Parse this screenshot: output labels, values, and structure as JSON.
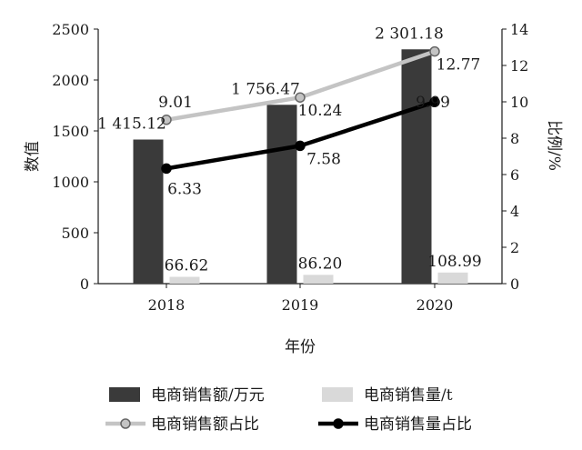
{
  "chart_data": {
    "type": "bar",
    "categories": [
      "2018",
      "2019",
      "2020"
    ],
    "xlabel": "年份",
    "ylabel": "数值",
    "ylabel_right": "比例/%",
    "ylim": [
      0,
      2500
    ],
    "ylim_right": [
      0,
      14
    ],
    "yticks": [
      "0",
      "500",
      "1000",
      "1500",
      "2000",
      "2500"
    ],
    "yticks_right": [
      "0",
      "2",
      "4",
      "6",
      "8",
      "10",
      "12",
      "14"
    ],
    "grid": false,
    "legend_position": "bottom",
    "bar_series": [
      {
        "name": "电商销售额/万元",
        "values": [
          1415.12,
          1756.47,
          2301.18
        ],
        "labels": [
          "1 415.12",
          "1 756.47",
          "2 301.18"
        ],
        "color": "#3a3a3a"
      },
      {
        "name": "电商销售量/t",
        "values": [
          66.62,
          86.2,
          108.99
        ],
        "labels": [
          "66.62",
          "86.20",
          "108.99"
        ],
        "color": "#d9d9d9"
      }
    ],
    "line_series": [
      {
        "name": "电商销售额占比",
        "values": [
          9.01,
          10.24,
          12.77
        ],
        "labels": [
          "9.01",
          "10.24",
          "12.77"
        ],
        "color": "#c4c4c4",
        "marker_fill": "#c4c4c4",
        "marker_stroke": "#666666",
        "axis": "right"
      },
      {
        "name": "电商销售量占比",
        "values": [
          6.33,
          7.58,
          9.99
        ],
        "labels": [
          "6.33",
          "7.58",
          "9.99"
        ],
        "color": "#000000",
        "marker_fill": "#000000",
        "marker_stroke": "#000000",
        "axis": "right"
      }
    ]
  }
}
